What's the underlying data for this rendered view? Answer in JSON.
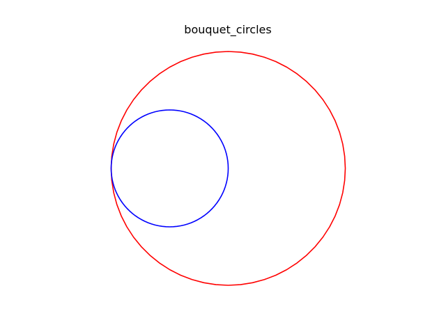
{
  "figure": {
    "title": "bouquet_circles"
  },
  "chart_data": {
    "type": "diagram",
    "title": "bouquet_circles",
    "axes_visible": false,
    "aspect": "equal",
    "circles": [
      {
        "name": "",
        "center": [
          0,
          0
        ],
        "radius": 2,
        "color": "#ff0000",
        "segments": 60
      },
      {
        "name": "",
        "center": [
          -1,
          0
        ],
        "radius": 1,
        "color": "#0000ff",
        "segments": 100
      }
    ]
  }
}
